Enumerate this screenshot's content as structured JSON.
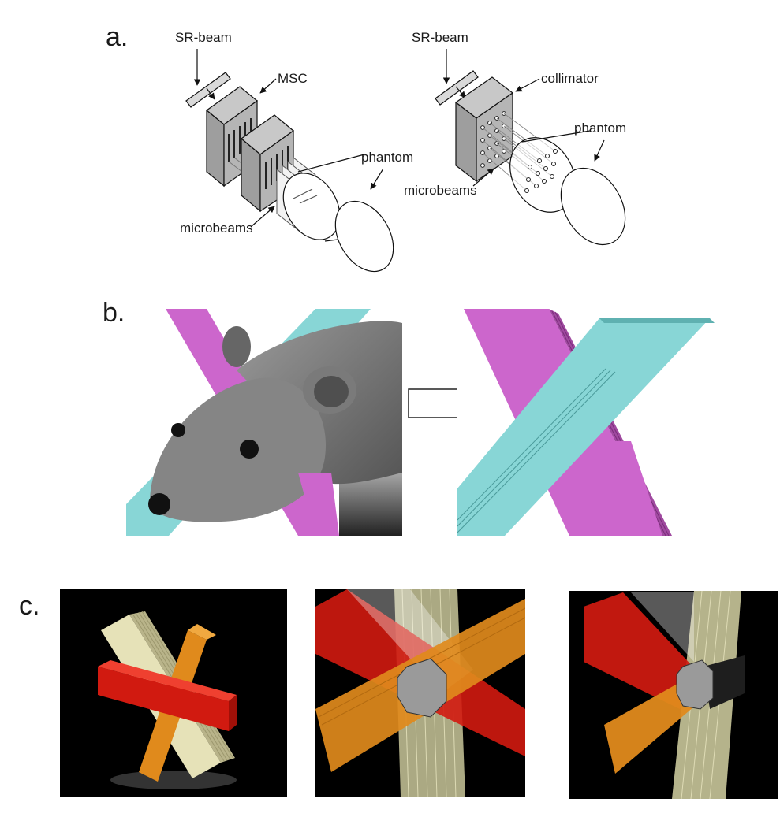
{
  "panels": {
    "a": {
      "letter": "a.",
      "left": {
        "sr_beam": "SR-beam",
        "msc": "MSC",
        "phantom": "phantom",
        "microbeams": "microbeams"
      },
      "right": {
        "sr_beam": "SR-beam",
        "collimator": "collimator",
        "phantom": "phantom",
        "microbeams": "microbeams"
      }
    },
    "b": {
      "letter": "b."
    },
    "c": {
      "letter": "c."
    }
  },
  "colors": {
    "magenta_beam": "#cc66cc",
    "cyan_beam": "#88d6d6",
    "red_beam": "#d11a10",
    "orange_beam": "#e08a1c",
    "cream_beam": "#e6e2b8",
    "mouse_gray": "#7a7a7a",
    "render_background": "#000000"
  }
}
